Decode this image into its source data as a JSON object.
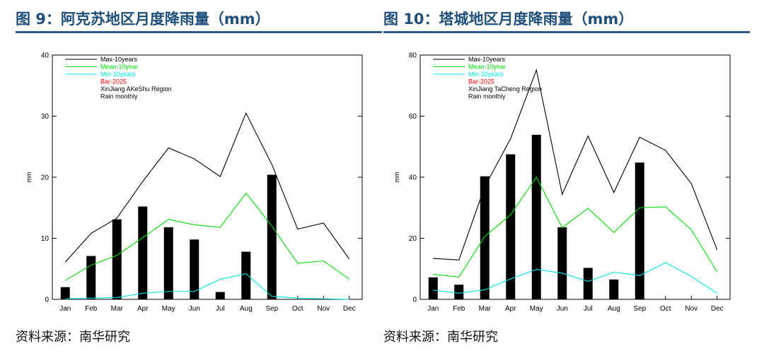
{
  "panels": [
    {
      "title": "图 9：阿克苏地区月度降雨量（mm）",
      "source": "资料来源：南华研究",
      "chart_data": {
        "type": "bar",
        "ylabel": "mm",
        "xlabel": "",
        "ylim": [
          0,
          40
        ],
        "yticks": [
          0,
          10,
          20,
          30,
          40
        ],
        "categories": [
          "Jan",
          "Feb",
          "Mar",
          "Apr",
          "May",
          "Jun",
          "Jul",
          "Aug",
          "Sep",
          "Oct",
          "Nov",
          "Dec"
        ],
        "bar_series": {
          "name": "Bar-2025",
          "values": [
            2.0,
            7.1,
            13.1,
            15.2,
            11.8,
            9.8,
            1.2,
            7.8,
            20.4,
            null,
            null,
            null
          ]
        },
        "line_series": [
          {
            "name": "Max-10years",
            "color": "#000000",
            "values": [
              6.1,
              10.8,
              13.3,
              19.3,
              24.8,
              23.0,
              20.1,
              30.5,
              22.1,
              11.5,
              12.5,
              6.6
            ]
          },
          {
            "name": "Mean-10year",
            "color": "#00dd00",
            "values": [
              3.1,
              5.6,
              7.2,
              10.1,
              13.1,
              12.2,
              11.8,
              17.4,
              12.0,
              5.9,
              6.3,
              3.3
            ]
          },
          {
            "name": "Min-10years",
            "color": "#00e5e5",
            "values": [
              0.1,
              0.2,
              0.3,
              1.0,
              1.3,
              1.3,
              3.3,
              4.2,
              0.5,
              0.2,
              0.1,
              0.0
            ]
          }
        ],
        "legend": {
          "position": "top-left",
          "entries": [
            {
              "label": "Max-10years",
              "color": "#000000",
              "line": true
            },
            {
              "label": "Mean-10year",
              "color": "#00dd00",
              "line": true
            },
            {
              "label": "Min-10years",
              "color": "#00e5e5",
              "line": true
            },
            {
              "label": "Bar-2025",
              "color": "#ff0000",
              "line": false
            },
            {
              "label": "XinJiang AKeShu Region",
              "color": "#000000",
              "line": false
            },
            {
              "label": "Rain monthly",
              "color": "#000000",
              "line": false
            }
          ]
        },
        "grid": false
      }
    },
    {
      "title": "图 10：塔城地区月度降雨量（mm）",
      "source": "资料来源：南华研究",
      "chart_data": {
        "type": "bar",
        "ylabel": "mm",
        "xlabel": "",
        "ylim": [
          0,
          80
        ],
        "yticks": [
          0,
          20,
          40,
          60,
          80
        ],
        "categories": [
          "Jan",
          "Feb",
          "Mar",
          "Apr",
          "May",
          "Jun",
          "Jul",
          "Aug",
          "Sep",
          "Oct",
          "Nov",
          "Dec"
        ],
        "bar_series": {
          "name": "Bar-2025",
          "values": [
            7.2,
            4.8,
            40.3,
            47.5,
            53.9,
            23.6,
            10.3,
            6.5,
            44.8,
            null,
            null,
            null
          ]
        },
        "line_series": [
          {
            "name": "Max-10years",
            "color": "#000000",
            "values": [
              13.4,
              12.9,
              36.9,
              52.6,
              75.1,
              34.4,
              53.5,
              35.0,
              53.1,
              48.8,
              37.9,
              16.2
            ]
          },
          {
            "name": "Mean-10year",
            "color": "#00dd00",
            "values": [
              8.2,
              7.3,
              20.6,
              27.7,
              40.0,
              23.5,
              29.8,
              21.9,
              30.0,
              30.3,
              22.8,
              9.0
            ]
          },
          {
            "name": "Min-10years",
            "color": "#00e5e5",
            "values": [
              3.0,
              2.0,
              3.1,
              6.7,
              9.8,
              8.6,
              5.9,
              8.9,
              7.8,
              12.0,
              7.5,
              2.0
            ]
          }
        ],
        "legend": {
          "position": "top-left",
          "entries": [
            {
              "label": "Max-10years",
              "color": "#000000",
              "line": true
            },
            {
              "label": "Mean-10year",
              "color": "#00dd00",
              "line": true
            },
            {
              "label": "Min-10years",
              "color": "#00e5e5",
              "line": true
            },
            {
              "label": "Bar-2025",
              "color": "#ff0000",
              "line": false
            },
            {
              "label": "XinJiang TaCheng Region",
              "color": "#000000",
              "line": false
            },
            {
              "label": "Rain monthly",
              "color": "#000000",
              "line": false
            }
          ]
        },
        "grid": false
      }
    }
  ]
}
